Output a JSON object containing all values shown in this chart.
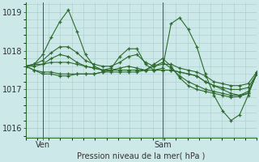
{
  "background_color": "#cce8e8",
  "grid_color": "#aacccc",
  "line_color": "#2d6a2d",
  "ylabel": "Pression niveau de la mer( hPa )",
  "ylim": [
    1015.75,
    1019.25
  ],
  "yticks": [
    1016,
    1017,
    1018,
    1019
  ],
  "ven_label": "Ven",
  "sam_label": "Sam",
  "n_points": 28,
  "ven_idx": 2,
  "sam_idx": 16,
  "series": [
    [
      1017.6,
      1017.65,
      1017.9,
      1018.35,
      1018.75,
      1019.05,
      1018.5,
      1017.9,
      1017.6,
      1017.5,
      1017.55,
      1017.85,
      1018.05,
      1018.05,
      1017.65,
      1017.5,
      1017.55,
      1018.7,
      1018.85,
      1018.55,
      1018.1,
      1017.4,
      1016.85,
      1016.45,
      1016.2,
      1016.35,
      1016.85,
      1017.45
    ],
    [
      1017.6,
      1017.65,
      1017.65,
      1017.7,
      1017.7,
      1017.7,
      1017.65,
      1017.6,
      1017.55,
      1017.5,
      1017.5,
      1017.5,
      1017.5,
      1017.5,
      1017.5,
      1017.5,
      1017.5,
      1017.5,
      1017.45,
      1017.4,
      1017.35,
      1017.2,
      1017.1,
      1017.0,
      1016.9,
      1016.85,
      1016.95,
      1017.4
    ],
    [
      1017.6,
      1017.65,
      1017.75,
      1017.95,
      1018.1,
      1018.1,
      1017.95,
      1017.75,
      1017.65,
      1017.6,
      1017.6,
      1017.7,
      1017.85,
      1017.9,
      1017.7,
      1017.6,
      1017.65,
      1017.65,
      1017.55,
      1017.5,
      1017.45,
      1017.35,
      1017.2,
      1017.15,
      1017.1,
      1017.1,
      1017.15,
      1017.45
    ],
    [
      1017.6,
      1017.6,
      1017.65,
      1017.8,
      1017.9,
      1017.85,
      1017.7,
      1017.6,
      1017.55,
      1017.5,
      1017.5,
      1017.55,
      1017.6,
      1017.55,
      1017.5,
      1017.5,
      1017.5,
      1017.5,
      1017.45,
      1017.4,
      1017.35,
      1017.2,
      1017.1,
      1017.05,
      1017.0,
      1017.0,
      1017.05,
      1017.4
    ],
    [
      1017.6,
      1017.5,
      1017.45,
      1017.45,
      1017.4,
      1017.4,
      1017.4,
      1017.4,
      1017.4,
      1017.45,
      1017.5,
      1017.5,
      1017.5,
      1017.5,
      1017.5,
      1017.6,
      1017.7,
      1017.55,
      1017.35,
      1017.2,
      1017.1,
      1017.0,
      1016.95,
      1016.9,
      1016.85,
      1016.85,
      1016.9,
      1017.4
    ],
    [
      1017.6,
      1017.5,
      1017.4,
      1017.4,
      1017.35,
      1017.35,
      1017.4,
      1017.4,
      1017.4,
      1017.45,
      1017.45,
      1017.45,
      1017.45,
      1017.45,
      1017.5,
      1017.65,
      1017.8,
      1017.6,
      1017.3,
      1017.1,
      1017.0,
      1016.95,
      1016.9,
      1016.85,
      1016.8,
      1016.82,
      1016.9,
      1017.4
    ]
  ]
}
